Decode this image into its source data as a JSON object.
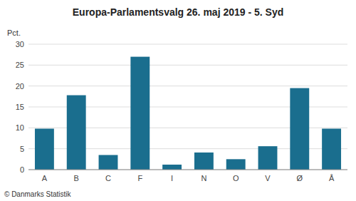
{
  "chart_data": {
    "type": "bar",
    "title": "Europa-Parlamentsvalg 26. maj 2019 - 5. Syd",
    "ylabel": "Pct.",
    "annotations": [
      "© Danmarks Statistik"
    ],
    "categories": [
      "A",
      "B",
      "C",
      "F",
      "I",
      "N",
      "O",
      "V",
      "Ø",
      "Å"
    ],
    "values": [
      9.8,
      17.8,
      3.5,
      27.0,
      1.2,
      4.1,
      2.5,
      5.6,
      19.5,
      9.8
    ],
    "color": "#1a6e8e",
    "ylim": [
      0,
      30
    ],
    "yticks": [
      0,
      5,
      10,
      15,
      20,
      25,
      30
    ],
    "grid": true
  }
}
